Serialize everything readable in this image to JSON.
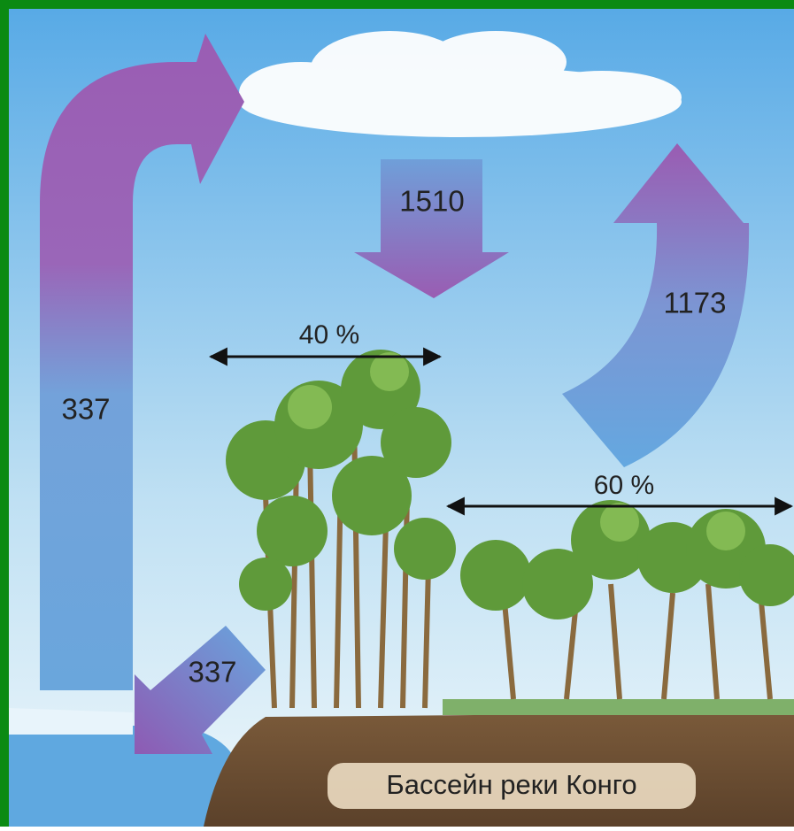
{
  "arrows": [
    {
      "label": "1510"
    },
    {
      "label": "1173"
    },
    {
      "label": "337"
    },
    {
      "label": "337"
    }
  ],
  "spans": [
    {
      "label": "40 %"
    },
    {
      "label": "60 %"
    }
  ],
  "caption": "Бассейн реки Конго"
}
